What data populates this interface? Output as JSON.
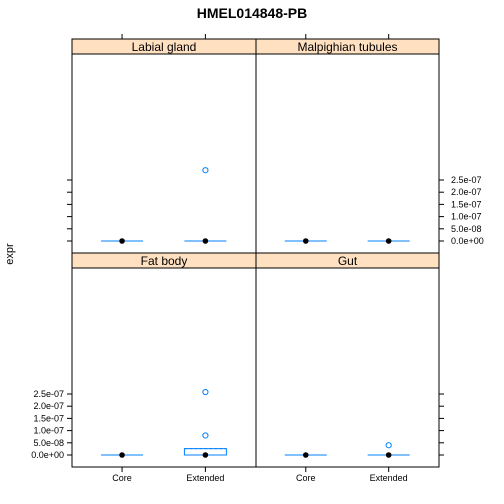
{
  "chart_data": {
    "type": "box",
    "title": "HMEL014848-PB",
    "xlabel": "",
    "ylabel": "expr",
    "categories": [
      "Core",
      "Extended"
    ],
    "ylim": [
      -2e-08,
      3e-07
    ],
    "y_ticks": [
      0,
      5e-08,
      1e-07,
      1.5e-07,
      2e-07,
      2.5e-07
    ],
    "y_tick_labels": [
      "0.0e+00",
      "5.0e-08",
      "1.0e-07",
      "1.5e-07",
      "2.0e-07",
      "2.5e-07"
    ],
    "colors": {
      "strip": "#ffe0c0",
      "box": "#0080ff",
      "median": "#000000",
      "outlier": "#0080ff"
    },
    "panels": [
      {
        "name": "Labial gland",
        "position": "top-left",
        "boxes": [
          {
            "category": "Core",
            "q1": 0,
            "median": 0,
            "q3": 0,
            "whisker_low": 0,
            "whisker_high": 0,
            "outliers": []
          },
          {
            "category": "Extended",
            "q1": 0,
            "median": 0,
            "q3": 0,
            "whisker_low": 0,
            "whisker_high": 0,
            "outliers": [
              2.9e-07
            ]
          }
        ]
      },
      {
        "name": "Malpighian tubules",
        "position": "top-right",
        "boxes": [
          {
            "category": "Core",
            "q1": 0,
            "median": 0,
            "q3": 0,
            "whisker_low": 0,
            "whisker_high": 0,
            "outliers": []
          },
          {
            "category": "Extended",
            "q1": 0,
            "median": 0,
            "q3": 0,
            "whisker_low": 0,
            "whisker_high": 0,
            "outliers": []
          }
        ]
      },
      {
        "name": "Fat body",
        "position": "bottom-left",
        "boxes": [
          {
            "category": "Core",
            "q1": 0,
            "median": 0,
            "q3": 0,
            "whisker_low": 0,
            "whisker_high": 0,
            "outliers": []
          },
          {
            "category": "Extended",
            "q1": 0,
            "median": 0,
            "q3": 2.6e-08,
            "whisker_low": 0,
            "whisker_high": 2.6e-08,
            "outliers": [
              8e-08,
              2.58e-07
            ]
          }
        ]
      },
      {
        "name": "Gut",
        "position": "bottom-right",
        "boxes": [
          {
            "category": "Core",
            "q1": 0,
            "median": 0,
            "q3": 0,
            "whisker_low": 0,
            "whisker_high": 0,
            "outliers": []
          },
          {
            "category": "Extended",
            "q1": 0,
            "median": 0,
            "q3": 0,
            "whisker_low": 0,
            "whisker_high": 0,
            "outliers": [
              4e-08
            ]
          }
        ]
      }
    ]
  }
}
